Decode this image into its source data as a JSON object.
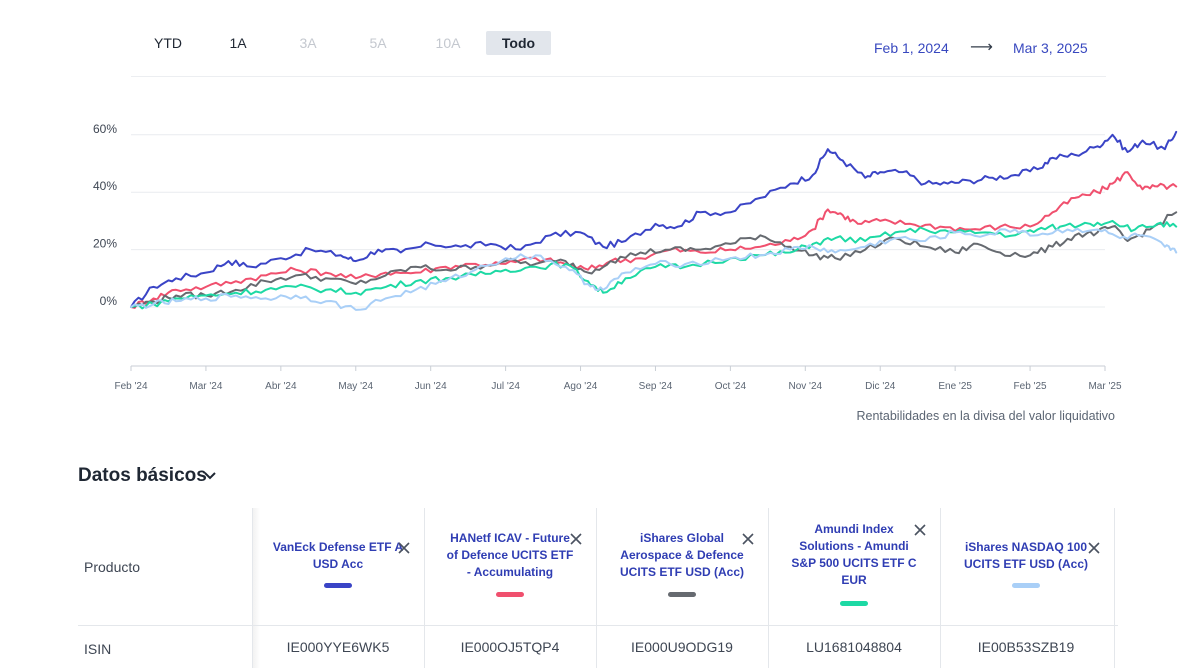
{
  "range_selector": {
    "buttons": [
      {
        "label": "YTD",
        "state": "enabled"
      },
      {
        "label": "1A",
        "state": "enabled"
      },
      {
        "label": "3A",
        "state": "disabled"
      },
      {
        "label": "5A",
        "state": "disabled"
      },
      {
        "label": "10A",
        "state": "disabled"
      },
      {
        "label": "Todo",
        "state": "active"
      }
    ],
    "start_date": "Feb 1, 2024",
    "arrow": "⟶",
    "end_date": "Mar 3, 2025"
  },
  "chart_note": "Rentabilidades en la divisa del valor liquidativo",
  "section_title": "Datos básicos",
  "table": {
    "product_label": "Producto",
    "isin_label": "ISIN",
    "products": [
      {
        "name": "VanEck Defense ETF A USD Acc",
        "color": "#3a44c6",
        "isin": "IE000YYE6WK5"
      },
      {
        "name": "HANetf ICAV - Future of Defence UCITS ETF - Accumulating",
        "color": "#f0506e",
        "isin": "IE000OJ5TQP4"
      },
      {
        "name": "iShares Global Aerospace & Defence UCITS ETF USD (Acc)",
        "color": "#666a70",
        "isin": "IE000U9ODG19"
      },
      {
        "name": "Amundi Index Solutions - Amundi S&P 500 UCITS ETF C EUR",
        "color": "#1dd9a4",
        "isin": "LU1681048804"
      },
      {
        "name": "iShares NASDAQ 100 UCITS ETF USD (Acc)",
        "color": "#a9cff7",
        "isin": "IE00B53SZB19"
      }
    ]
  },
  "chart_data": {
    "type": "line",
    "x_tick_labels": [
      "Feb '24",
      "Mar '24",
      "Abr '24",
      "May '24",
      "Jun '24",
      "Jul '24",
      "Ago '24",
      "Sep '24",
      "Oct '24",
      "Nov '24",
      "Dic '24",
      "Ene '25",
      "Feb '25",
      "Mar '25"
    ],
    "y_tick_labels": [
      "0%",
      "20%",
      "40%",
      "60%"
    ],
    "y_ticks": [
      0,
      20,
      40,
      60
    ],
    "ylim": [
      -20,
      60
    ],
    "grid": "horizontal",
    "x_unit": "months since Feb 2024",
    "series": [
      {
        "name": "VanEck Defense ETF A USD Acc",
        "color": "#3a44c6",
        "points": [
          [
            0,
            0
          ],
          [
            0.3,
            7
          ],
          [
            0.6,
            10
          ],
          [
            1,
            12
          ],
          [
            1.3,
            16
          ],
          [
            1.6,
            14
          ],
          [
            2,
            17
          ],
          [
            2.4,
            20
          ],
          [
            2.8,
            18
          ],
          [
            3,
            16
          ],
          [
            3.3,
            20
          ],
          [
            3.6,
            19
          ],
          [
            4,
            22
          ],
          [
            4.4,
            21
          ],
          [
            4.8,
            22
          ],
          [
            5.2,
            20
          ],
          [
            5.6,
            25
          ],
          [
            6,
            26
          ],
          [
            6.3,
            21
          ],
          [
            6.6,
            23
          ],
          [
            7,
            29
          ],
          [
            7.3,
            28
          ],
          [
            7.6,
            33
          ],
          [
            8,
            33
          ],
          [
            8.4,
            38
          ],
          [
            8.8,
            43
          ],
          [
            9.1,
            46
          ],
          [
            9.3,
            55
          ],
          [
            9.5,
            51
          ],
          [
            9.8,
            45
          ],
          [
            10,
            47
          ],
          [
            10.3,
            47
          ],
          [
            10.6,
            43
          ],
          [
            10.9,
            43
          ],
          [
            11.2,
            44
          ],
          [
            11.5,
            45
          ],
          [
            11.8,
            46
          ],
          [
            12.1,
            48
          ],
          [
            12.3,
            52
          ],
          [
            12.6,
            53
          ],
          [
            12.9,
            56
          ],
          [
            13.1,
            60
          ],
          [
            13.3,
            54
          ],
          [
            13.5,
            58
          ],
          [
            13.8,
            55
          ],
          [
            13.95,
            61
          ]
        ]
      },
      {
        "name": "HANetf ICAV - Future of Defence UCITS ETF - Accumulating",
        "color": "#f0506e",
        "points": [
          [
            0,
            0
          ],
          [
            0.3,
            3
          ],
          [
            0.6,
            6
          ],
          [
            1,
            7
          ],
          [
            1.4,
            9
          ],
          [
            1.8,
            11
          ],
          [
            2.2,
            13
          ],
          [
            2.6,
            12
          ],
          [
            3,
            10
          ],
          [
            3.4,
            12
          ],
          [
            3.8,
            12
          ],
          [
            4.2,
            14
          ],
          [
            4.6,
            15
          ],
          [
            5,
            15
          ],
          [
            5.4,
            17
          ],
          [
            5.8,
            15
          ],
          [
            6.1,
            13
          ],
          [
            6.4,
            16
          ],
          [
            6.8,
            17
          ],
          [
            7.2,
            20
          ],
          [
            7.6,
            19
          ],
          [
            8,
            20
          ],
          [
            8.4,
            21
          ],
          [
            8.8,
            23
          ],
          [
            9.1,
            27
          ],
          [
            9.3,
            34
          ],
          [
            9.5,
            32
          ],
          [
            9.7,
            29
          ],
          [
            10,
            30
          ],
          [
            10.4,
            29
          ],
          [
            10.8,
            28
          ],
          [
            11.2,
            27
          ],
          [
            11.6,
            28
          ],
          [
            12,
            28
          ],
          [
            12.3,
            33
          ],
          [
            12.6,
            38
          ],
          [
            12.9,
            40
          ],
          [
            13.1,
            43
          ],
          [
            13.3,
            47
          ],
          [
            13.5,
            41
          ],
          [
            13.7,
            42
          ],
          [
            13.95,
            42
          ]
        ]
      },
      {
        "name": "iShares Global Aerospace & Defence UCITS ETF USD (Acc)",
        "color": "#666a70",
        "points": [
          [
            0,
            0
          ],
          [
            0.3,
            2
          ],
          [
            0.6,
            4
          ],
          [
            1,
            4
          ],
          [
            1.4,
            6
          ],
          [
            1.8,
            9
          ],
          [
            2.2,
            11
          ],
          [
            2.6,
            10
          ],
          [
            3,
            8
          ],
          [
            3.4,
            11
          ],
          [
            3.8,
            14
          ],
          [
            4.2,
            13
          ],
          [
            4.6,
            14
          ],
          [
            5,
            16
          ],
          [
            5.4,
            15
          ],
          [
            5.8,
            16
          ],
          [
            6.1,
            12
          ],
          [
            6.4,
            16
          ],
          [
            6.8,
            19
          ],
          [
            7.2,
            20
          ],
          [
            7.6,
            20
          ],
          [
            8,
            22
          ],
          [
            8.4,
            25
          ],
          [
            8.8,
            21
          ],
          [
            9.1,
            18
          ],
          [
            9.4,
            17
          ],
          [
            9.8,
            20
          ],
          [
            10.2,
            24
          ],
          [
            10.6,
            21
          ],
          [
            11,
            19
          ],
          [
            11.3,
            22
          ],
          [
            11.6,
            19
          ],
          [
            12,
            18
          ],
          [
            12.3,
            21
          ],
          [
            12.6,
            25
          ],
          [
            12.9,
            26
          ],
          [
            13.1,
            28
          ],
          [
            13.3,
            23
          ],
          [
            13.6,
            27
          ],
          [
            13.95,
            33
          ]
        ]
      },
      {
        "name": "Amundi Index Solutions - Amundi S&P 500 UCITS ETF C EUR",
        "color": "#1dd9a4",
        "points": [
          [
            0,
            0
          ],
          [
            0.3,
            1
          ],
          [
            0.6,
            3
          ],
          [
            1,
            4
          ],
          [
            1.4,
            5
          ],
          [
            1.8,
            6
          ],
          [
            2.2,
            7
          ],
          [
            2.6,
            6
          ],
          [
            3,
            5
          ],
          [
            3.4,
            7
          ],
          [
            3.8,
            9
          ],
          [
            4.2,
            10
          ],
          [
            4.6,
            11
          ],
          [
            5,
            13
          ],
          [
            5.4,
            14
          ],
          [
            5.8,
            15
          ],
          [
            6.1,
            9
          ],
          [
            6.3,
            5
          ],
          [
            6.6,
            10
          ],
          [
            7,
            14
          ],
          [
            7.4,
            14
          ],
          [
            8,
            17
          ],
          [
            8.4,
            18
          ],
          [
            8.8,
            19
          ],
          [
            9.1,
            22
          ],
          [
            9.4,
            24
          ],
          [
            9.8,
            23
          ],
          [
            10.2,
            26
          ],
          [
            10.6,
            27
          ],
          [
            11,
            26
          ],
          [
            11.4,
            26
          ],
          [
            11.8,
            25
          ],
          [
            12.1,
            27
          ],
          [
            12.4,
            28
          ],
          [
            12.8,
            29
          ],
          [
            13.1,
            30
          ],
          [
            13.4,
            27
          ],
          [
            13.7,
            29
          ],
          [
            13.95,
            28
          ]
        ]
      },
      {
        "name": "iShares NASDAQ 100 UCITS ETF USD (Acc)",
        "color": "#a9cff7",
        "points": [
          [
            0,
            0
          ],
          [
            0.3,
            1
          ],
          [
            0.6,
            2
          ],
          [
            1,
            3
          ],
          [
            1.4,
            4
          ],
          [
            1.8,
            3
          ],
          [
            2.2,
            4
          ],
          [
            2.6,
            2
          ],
          [
            3,
            -1
          ],
          [
            3.4,
            3
          ],
          [
            3.8,
            6
          ],
          [
            4.2,
            9
          ],
          [
            4.6,
            13
          ],
          [
            5,
            17
          ],
          [
            5.4,
            18
          ],
          [
            5.8,
            14
          ],
          [
            6.1,
            8
          ],
          [
            6.3,
            6
          ],
          [
            6.6,
            12
          ],
          [
            7,
            15
          ],
          [
            7.4,
            15
          ],
          [
            8,
            17
          ],
          [
            8.4,
            18
          ],
          [
            8.8,
            20
          ],
          [
            9.1,
            21
          ],
          [
            9.4,
            19
          ],
          [
            9.8,
            21
          ],
          [
            10.2,
            24
          ],
          [
            10.6,
            23
          ],
          [
            11,
            26
          ],
          [
            11.4,
            25
          ],
          [
            11.8,
            27
          ],
          [
            12.1,
            25
          ],
          [
            12.5,
            27
          ],
          [
            12.9,
            27
          ],
          [
            13.2,
            24
          ],
          [
            13.5,
            25
          ],
          [
            13.8,
            21
          ],
          [
            13.95,
            19
          ]
        ]
      }
    ]
  }
}
